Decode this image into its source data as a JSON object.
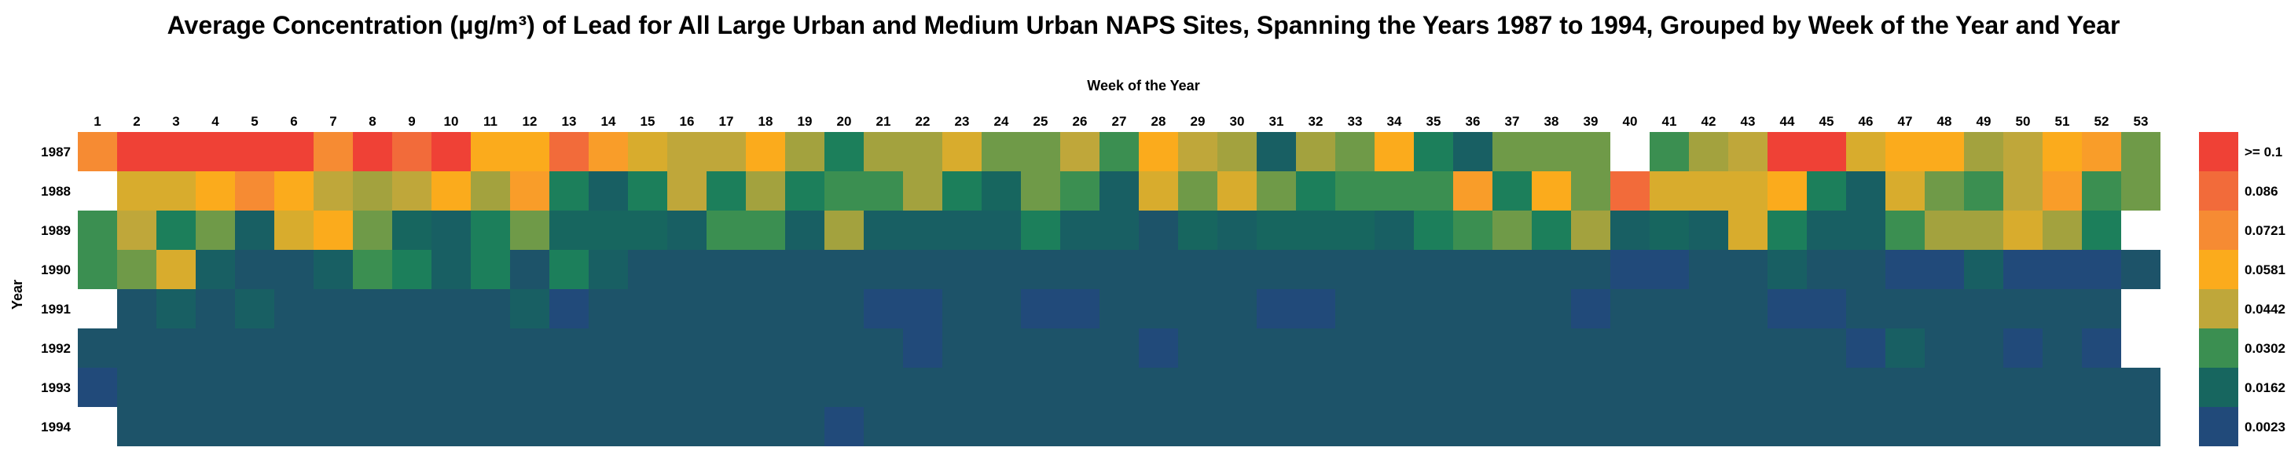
{
  "chart_data": {
    "type": "heatmap",
    "title": "Average Concentration (μg/m³) of Lead for All Large Urban and Medium Urban NAPS Sites, Spanning the Years 1987 to 1994, Grouped by Week of the Year and Year",
    "xlabel": "Week of the Year",
    "ylabel": "Year",
    "x_categories": [
      "1",
      "2",
      "3",
      "4",
      "5",
      "6",
      "7",
      "8",
      "9",
      "10",
      "11",
      "12",
      "13",
      "14",
      "15",
      "16",
      "17",
      "18",
      "19",
      "20",
      "21",
      "22",
      "23",
      "24",
      "25",
      "26",
      "27",
      "28",
      "29",
      "30",
      "31",
      "32",
      "33",
      "34",
      "35",
      "36",
      "37",
      "38",
      "39",
      "40",
      "41",
      "42",
      "43",
      "44",
      "45",
      "46",
      "47",
      "48",
      "49",
      "50",
      "51",
      "52",
      "53"
    ],
    "y_categories": [
      "1987",
      "1988",
      "1989",
      "1990",
      "1991",
      "1992",
      "1993",
      "1994"
    ],
    "values": [
      [
        0.085,
        0.11,
        0.11,
        0.11,
        0.11,
        0.11,
        0.088,
        0.105,
        0.09,
        0.105,
        0.07,
        0.07,
        0.095,
        0.078,
        0.065,
        0.06,
        0.06,
        0.075,
        0.05,
        0.032,
        0.052,
        0.052,
        0.062,
        0.045,
        0.04,
        0.06,
        0.035,
        0.07,
        0.055,
        0.052,
        0.014,
        0.05,
        0.045,
        0.075,
        0.03,
        0.012,
        0.045,
        0.045,
        0.045,
        null,
        0.035,
        0.05,
        0.058,
        0.11,
        0.11,
        0.062,
        0.07,
        0.07,
        0.05,
        0.06,
        0.075,
        0.078,
        0.045
      ],
      [
        null,
        0.065,
        0.065,
        0.07,
        0.085,
        0.075,
        0.06,
        0.05,
        0.06,
        0.075,
        0.05,
        0.078,
        0.03,
        0.015,
        0.025,
        0.06,
        0.032,
        0.05,
        0.028,
        0.038,
        0.038,
        0.05,
        0.032,
        0.022,
        0.045,
        0.035,
        0.015,
        0.062,
        0.04,
        0.062,
        0.04,
        0.03,
        0.038,
        0.038,
        0.038,
        0.08,
        0.032,
        0.072,
        0.042,
        0.095,
        0.062,
        0.062,
        0.062,
        0.075,
        0.025,
        0.015,
        0.062,
        0.042,
        0.035,
        0.06,
        0.08,
        0.035,
        0.04
      ],
      [
        0.035,
        0.06,
        0.03,
        0.045,
        0.012,
        0.065,
        0.07,
        0.045,
        0.022,
        0.012,
        0.028,
        0.04,
        0.02,
        0.018,
        0.022,
        0.012,
        0.036,
        0.036,
        0.014,
        0.048,
        0.011,
        0.014,
        0.016,
        0.015,
        0.032,
        0.017,
        0.013,
        0.01,
        0.02,
        0.016,
        0.018,
        0.02,
        0.02,
        0.016,
        0.026,
        0.036,
        0.04,
        0.032,
        0.05,
        0.016,
        0.022,
        0.014,
        0.062,
        0.03,
        0.014,
        0.016,
        0.035,
        0.05,
        0.05,
        0.062,
        0.05,
        0.028,
        null
      ],
      [
        0.036,
        0.04,
        0.064,
        0.014,
        0.008,
        0.009,
        0.012,
        0.035,
        0.028,
        0.016,
        0.03,
        0.01,
        0.032,
        0.013,
        0.009,
        0.006,
        0.006,
        0.004,
        0.008,
        0.007,
        0.008,
        0.006,
        0.005,
        0.004,
        0.01,
        0.009,
        0.008,
        0.008,
        0.006,
        0.005,
        0.007,
        0.007,
        0.007,
        0.006,
        0.009,
        0.004,
        0.005,
        0.006,
        0.006,
        0.003,
        0.003,
        0.004,
        0.004,
        0.012,
        0.004,
        0.004,
        0.002,
        0.003,
        0.014,
        0.002,
        0.002,
        0.003,
        0.004
      ],
      [
        null,
        0.005,
        0.012,
        0.008,
        0.011,
        0.007,
        0.008,
        0.007,
        0.005,
        0.004,
        0.004,
        0.016,
        0.002,
        0.004,
        0.004,
        0.005,
        0.004,
        0.004,
        0.004,
        0.004,
        0.003,
        0.003,
        0.004,
        0.009,
        0.002,
        0.002,
        0.004,
        0.004,
        0.004,
        0.004,
        0.003,
        0.003,
        0.005,
        0.004,
        0.005,
        0.004,
        0.006,
        0.004,
        0.003,
        0.005,
        0.008,
        0.004,
        0.006,
        0.002,
        0.003,
        0.01,
        0.004,
        0.004,
        0.004,
        0.005,
        0.006,
        0.005,
        null
      ],
      [
        0.006,
        0.006,
        0.006,
        0.005,
        0.004,
        0.006,
        0.005,
        0.006,
        0.006,
        0.006,
        0.005,
        0.005,
        0.006,
        0.005,
        0.004,
        0.005,
        0.005,
        0.007,
        0.005,
        0.005,
        0.004,
        0.003,
        0.006,
        0.004,
        0.009,
        0.004,
        0.006,
        0.003,
        0.005,
        0.005,
        0.005,
        0.005,
        0.005,
        0.005,
        0.005,
        0.005,
        0.006,
        0.005,
        0.005,
        0.004,
        0.007,
        0.005,
        0.005,
        0.005,
        0.008,
        0.002,
        0.012,
        0.005,
        0.004,
        0.003,
        0.004,
        0.002,
        null
      ],
      [
        0.002,
        0.005,
        0.005,
        0.006,
        0.004,
        0.006,
        0.005,
        0.01,
        0.005,
        0.004,
        0.005,
        0.005,
        0.005,
        0.004,
        0.008,
        0.004,
        0.005,
        0.004,
        0.006,
        0.004,
        0.007,
        0.005,
        0.004,
        0.005,
        0.006,
        0.006,
        0.004,
        0.004,
        0.005,
        0.004,
        0.004,
        0.004,
        0.005,
        0.004,
        0.005,
        0.005,
        0.004,
        0.004,
        0.006,
        0.004,
        0.005,
        0.006,
        0.004,
        0.005,
        0.005,
        0.006,
        0.004,
        0.005,
        0.007,
        0.005,
        0.006,
        0.004,
        0.004
      ],
      [
        null,
        0.004,
        0.004,
        0.005,
        0.004,
        0.005,
        0.004,
        0.004,
        0.004,
        0.004,
        0.006,
        0.005,
        0.005,
        0.004,
        0.006,
        0.004,
        0.004,
        0.004,
        0.004,
        0.003,
        0.004,
        0.004,
        0.008,
        0.004,
        0.004,
        0.004,
        0.004,
        0.005,
        0.004,
        0.004,
        0.004,
        0.004,
        0.01,
        0.005,
        0.004,
        0.004,
        0.004,
        0.004,
        0.004,
        0.005,
        0.005,
        0.004,
        0.004,
        0.004,
        0.004,
        0.004,
        0.005,
        0.004,
        0.004,
        0.005,
        0.005,
        0.006,
        0.004
      ]
    ],
    "legend": {
      "labels": [
        ">= 0.1",
        "0.086",
        "0.0721",
        "0.0581",
        "0.0442",
        "0.0302",
        "0.0162",
        "0.0023"
      ],
      "colors": [
        "#ef4136",
        "#f26b3a",
        "#f68b33",
        "#fbab1c",
        "#bfa73a",
        "#3b8f51",
        "#17665f",
        "#214a7a"
      ]
    },
    "palette": [
      "#214a7a",
      "#1d5369",
      "#185f63",
      "#17665f",
      "#1c7f5b",
      "#3b8f51",
      "#6f9a48",
      "#a3a23e",
      "#bfa73a",
      "#d8ac2d",
      "#fbab1c",
      "#f99d29",
      "#f68b33",
      "#f26b3a",
      "#ef4136"
    ],
    "palette_max": 0.1
  }
}
